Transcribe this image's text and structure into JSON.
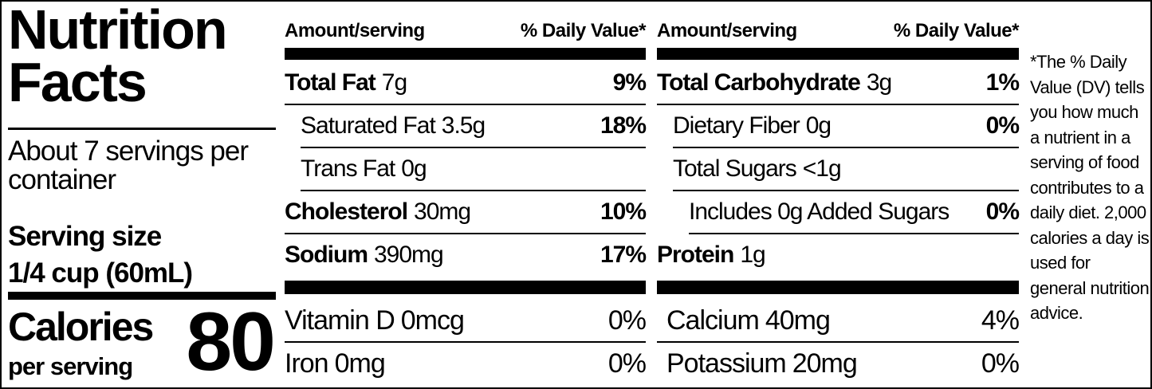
{
  "label": {
    "title": "Nutrition Facts",
    "servings": "About 7 servings per container",
    "serving_size_label": "Serving size",
    "serving_size": "1/4 cup (60mL)",
    "calories_label": "Calories",
    "calories_sub": "per serving",
    "calories": 80,
    "columns": [
      {
        "header_amount": "Amount/serving",
        "header_dv": "% Daily Value*",
        "rows": [
          {
            "name": "Total Fat",
            "amount": "7g",
            "dv": "9%",
            "bold": true,
            "indent": 0
          },
          {
            "name": "Saturated Fat",
            "amount": "3.5g",
            "dv": "18%",
            "bold": false,
            "indent": 1
          },
          {
            "name": "Trans Fat",
            "amount": "0g",
            "bold": false,
            "indent": 1
          },
          {
            "name": "Cholesterol",
            "amount": "30mg",
            "dv": "10%",
            "bold": true,
            "indent": 0
          },
          {
            "name": "Sodium",
            "amount": "390mg",
            "dv": "17%",
            "bold": true,
            "indent": 0
          }
        ],
        "micros": [
          {
            "name": "Vitamin D",
            "amount": "0mcg",
            "dv": "0%"
          },
          {
            "name": "Iron",
            "amount": "0mg",
            "dv": "0%"
          }
        ]
      },
      {
        "header_amount": "Amount/serving",
        "header_dv": "% Daily Value*",
        "rows": [
          {
            "name": "Total Carbohydrate",
            "amount": "3g",
            "dv": "1%",
            "bold": true,
            "indent": 0
          },
          {
            "name": "Dietary Fiber",
            "amount": "0g",
            "dv": "0%",
            "bold": false,
            "indent": 1
          },
          {
            "name": "Total Sugars",
            "amount": "<1g",
            "bold": false,
            "indent": 1
          },
          {
            "name": "Includes 0g Added Sugars",
            "dv": "0%",
            "bold": false,
            "indent": 2
          },
          {
            "name": "Protein",
            "amount": "1g",
            "bold": true,
            "indent": 0
          }
        ],
        "micros": [
          {
            "name": "Calcium",
            "amount": "40mg",
            "dv": "4%"
          },
          {
            "name": "Potassium",
            "amount": "20mg",
            "dv": "0%"
          }
        ]
      }
    ],
    "footnote": "*The % Daily Value (DV) tells you how much a nutrient in a serving of food contributes to a daily diet. 2,000 calories a day is used for general nutrition advice."
  }
}
